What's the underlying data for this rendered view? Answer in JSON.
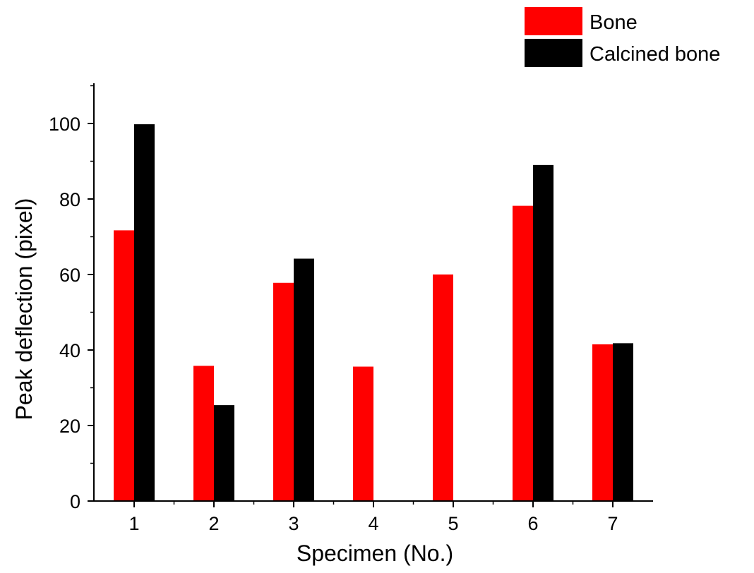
{
  "chart_data": {
    "type": "bar",
    "categories": [
      "1",
      "2",
      "3",
      "4",
      "5",
      "6",
      "7"
    ],
    "series": [
      {
        "name": "Bone",
        "color": "#ff0000",
        "values": [
          71.7,
          35.8,
          57.8,
          35.6,
          60.0,
          78.2,
          41.5
        ]
      },
      {
        "name": "Calcined bone",
        "color": "#000000",
        "values": [
          99.8,
          25.4,
          64.2,
          null,
          null,
          89.0,
          41.8
        ]
      }
    ],
    "title": "",
    "xlabel": "Specimen (No.)",
    "ylabel": "Peak deflection (pixel)",
    "ylim": [
      0,
      110
    ],
    "yticks": [
      "0",
      "20",
      "40",
      "60",
      "80",
      "100"
    ],
    "grid": false,
    "legend_position": "top-right"
  }
}
